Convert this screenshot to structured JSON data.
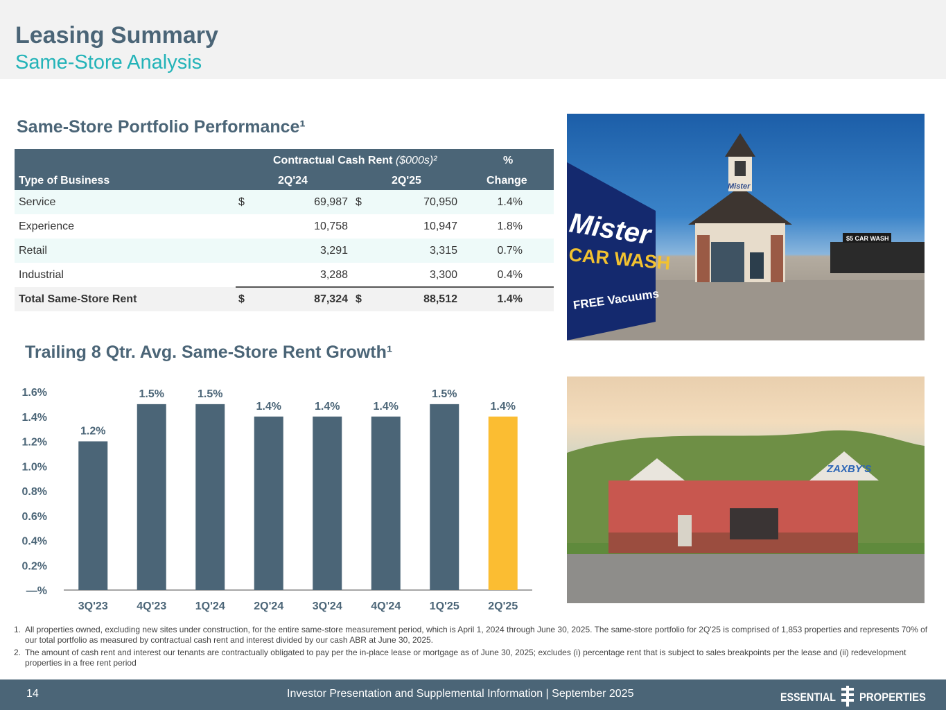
{
  "header": {
    "title": "Leasing Summary",
    "subtitle": "Same-Store Analysis"
  },
  "portfolio": {
    "heading": "Same-Store Portfolio Performance¹",
    "columns": {
      "type_of_business": "Type of Business",
      "cash_rent_title": "Contractual Cash Rent",
      "cash_rent_units": "($000s)²",
      "period1": "2Q'24",
      "period2": "2Q'25",
      "pct_top": "%",
      "pct_bottom": "Change"
    },
    "rows": [
      {
        "name": "Service",
        "dollar1": "$",
        "v1": "69,987",
        "dollar2": "$",
        "v2": "70,950",
        "pct": "1.4%"
      },
      {
        "name": "Experience",
        "dollar1": "",
        "v1": "10,758",
        "dollar2": "",
        "v2": "10,947",
        "pct": "1.8%"
      },
      {
        "name": "Retail",
        "dollar1": "",
        "v1": "3,291",
        "dollar2": "",
        "v2": "3,315",
        "pct": "0.7%"
      },
      {
        "name": "Industrial",
        "dollar1": "",
        "v1": "3,288",
        "dollar2": "",
        "v2": "3,300",
        "pct": "0.4%"
      }
    ],
    "total": {
      "name": "Total Same-Store Rent",
      "dollar1": "$",
      "v1": "87,324",
      "dollar2": "$",
      "v2": "88,512",
      "pct": "1.4%"
    }
  },
  "growth": {
    "heading": "Trailing 8 Qtr. Avg. Same-Store Rent Growth¹"
  },
  "chart_data": {
    "type": "bar",
    "categories": [
      "3Q'23",
      "4Q'23",
      "1Q'24",
      "2Q'24",
      "3Q'24",
      "4Q'24",
      "1Q'25",
      "2Q'25"
    ],
    "values": [
      1.2,
      1.5,
      1.5,
      1.4,
      1.4,
      1.4,
      1.5,
      1.4
    ],
    "value_labels": [
      "1.2%",
      "1.5%",
      "1.5%",
      "1.4%",
      "1.4%",
      "1.4%",
      "1.5%",
      "1.4%"
    ],
    "y_ticks": [
      0,
      0.2,
      0.4,
      0.6,
      0.8,
      1.0,
      1.2,
      1.4,
      1.6
    ],
    "y_tick_labels": [
      "—%",
      "0.2%",
      "0.4%",
      "0.6%",
      "0.8%",
      "1.0%",
      "1.2%",
      "1.4%",
      "1.6%"
    ],
    "ylim": [
      0,
      1.6
    ],
    "grid": false,
    "colors": {
      "default": "#4b6577",
      "highlight": "#fbbd32"
    },
    "highlight_index": 7
  },
  "photos": [
    {
      "icon": "car-wash-photo",
      "sign_top": "Mister",
      "sign_bottom": "CAR WASH",
      "banner": "FREE Vacuums",
      "tower_sign": "Mister",
      "side_sign": "$5 CAR WASH"
    },
    {
      "icon": "restaurant-photo",
      "sign": "ZAXBY'S"
    }
  ],
  "footnotes": [
    {
      "num": "1.",
      "text": "All properties owned, excluding new sites under construction, for the entire same-store measurement period, which is April 1, 2024 through June 30, 2025. The same-store portfolio for 2Q'25 is comprised of 1,853 properties and represents 70% of our total portfolio as measured by contractual cash rent and interest divided by our cash ABR at June 30, 2025."
    },
    {
      "num": "2.",
      "text": "The amount of cash rent and interest our tenants are contractually obligated to pay per the in-place lease or mortgage as of June 30, 2025; excludes (i) percentage rent that is subject to sales breakpoints per the lease and (ii) redevelopment properties in a free rent period"
    }
  ],
  "footer": {
    "page_number": "14",
    "text": "Investor Presentation and Supplemental Information |  September 2025",
    "logo_left": "ESSENTIAL",
    "logo_right": "PROPERTIES"
  }
}
